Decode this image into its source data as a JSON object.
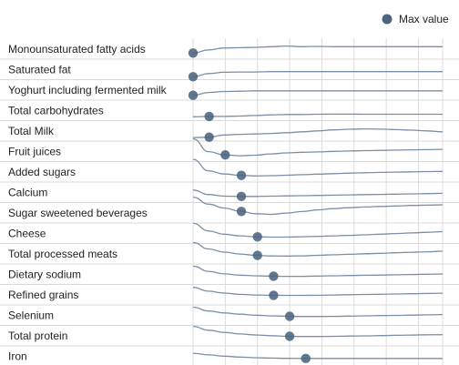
{
  "chart_data": {
    "type": "line",
    "legend": {
      "label": "Max value",
      "marker_color": "#4a6480",
      "placement": "top-right"
    },
    "grid": true,
    "colors": {
      "curve": "#7b8fa6",
      "grid": "#dcdcdc",
      "row_rule": "#d9d9d9",
      "axis": "#cfcfcf"
    },
    "series": [
      {
        "name": "Monounsaturated fatty acids",
        "max_x": 0.0,
        "curve": [
          0.3,
          0.55,
          0.7,
          0.72,
          0.75,
          0.8,
          0.85,
          0.8,
          0.82,
          0.8,
          0.8,
          0.8,
          0.8,
          0.8,
          0.8,
          0.8,
          0.8
        ]
      },
      {
        "name": "Saturated fat",
        "max_x": 0.0,
        "curve": [
          0.05,
          0.3,
          0.4,
          0.42,
          0.42,
          0.45,
          0.45,
          0.45,
          0.45,
          0.45,
          0.45,
          0.45,
          0.45,
          0.45,
          0.45,
          0.45,
          0.45
        ]
      },
      {
        "name": "Yoghurt including fermented milk",
        "max_x": 0.0,
        "curve": [
          0.2,
          0.42,
          0.5,
          0.52,
          0.55,
          0.55,
          0.55,
          0.55,
          0.55,
          0.55,
          0.55,
          0.55,
          0.55,
          0.55,
          0.55,
          0.55,
          0.55
        ]
      },
      {
        "name": "Total carbohydrates",
        "max_x": 1.0,
        "curve": [
          0.12,
          0.15,
          0.15,
          0.18,
          0.22,
          0.27,
          0.3,
          0.3,
          0.32,
          0.33,
          0.33,
          0.32,
          0.32,
          0.32,
          0.32,
          0.32,
          0.32
        ]
      },
      {
        "name": "Total Milk",
        "max_x": 1.0,
        "curve": [
          0.1,
          0.12,
          0.3,
          0.35,
          0.38,
          0.42,
          0.48,
          0.55,
          0.62,
          0.7,
          0.75,
          0.78,
          0.76,
          0.72,
          0.68,
          0.62,
          0.55
        ]
      },
      {
        "name": "Fruit juices",
        "max_x": 2.0,
        "curve": [
          1.6,
          0.6,
          0.35,
          0.28,
          0.32,
          0.42,
          0.5,
          0.55,
          0.58,
          0.62,
          0.65,
          0.68,
          0.7,
          0.72,
          0.74,
          0.76,
          0.78
        ]
      },
      {
        "name": "Added sugars",
        "max_x": 3.0,
        "curve": [
          1.6,
          0.7,
          0.45,
          0.35,
          0.3,
          0.32,
          0.36,
          0.4,
          0.44,
          0.48,
          0.52,
          0.55,
          0.58,
          0.6,
          0.62,
          0.64,
          0.66
        ]
      },
      {
        "name": "Calcium",
        "max_x": 3.0,
        "curve": [
          0.8,
          0.45,
          0.32,
          0.3,
          0.3,
          0.32,
          0.34,
          0.36,
          0.38,
          0.4,
          0.42,
          0.44,
          0.46,
          0.48,
          0.5,
          0.52,
          0.54
        ]
      },
      {
        "name": "Sugar sweetened beverages",
        "max_x": 3.0,
        "curve": [
          1.85,
          1.3,
          1.0,
          0.75,
          0.55,
          0.5,
          0.6,
          0.72,
          0.85,
          0.95,
          1.02,
          1.08,
          1.12,
          1.16,
          1.2,
          1.22,
          1.25
        ]
      },
      {
        "name": "Cheese",
        "max_x": 4.0,
        "curve": [
          1.4,
          0.8,
          0.55,
          0.42,
          0.35,
          0.32,
          0.32,
          0.35,
          0.38,
          0.42,
          0.46,
          0.5,
          0.55,
          0.6,
          0.65,
          0.7,
          0.75
        ]
      },
      {
        "name": "Total processed meats",
        "max_x": 4.0,
        "curve": [
          1.5,
          1.0,
          0.75,
          0.6,
          0.5,
          0.45,
          0.44,
          0.46,
          0.5,
          0.54,
          0.58,
          0.62,
          0.66,
          0.7,
          0.74,
          0.78,
          0.82
        ]
      },
      {
        "name": "Dietary sodium",
        "max_x": 5.0,
        "curve": [
          1.25,
          0.85,
          0.65,
          0.55,
          0.5,
          0.47,
          0.46,
          0.46,
          0.48,
          0.5,
          0.52,
          0.54,
          0.56,
          0.58,
          0.6,
          0.62,
          0.64
        ]
      },
      {
        "name": "Refined grains",
        "max_x": 5.0,
        "curve": [
          1.2,
          0.9,
          0.75,
          0.65,
          0.6,
          0.58,
          0.57,
          0.57,
          0.58,
          0.6,
          0.62,
          0.64,
          0.66,
          0.68,
          0.7,
          0.72,
          0.74
        ]
      },
      {
        "name": "Selenium",
        "max_x": 6.0,
        "curve": [
          1.25,
          0.95,
          0.8,
          0.7,
          0.62,
          0.57,
          0.54,
          0.52,
          0.52,
          0.53,
          0.55,
          0.57,
          0.59,
          0.61,
          0.63,
          0.65,
          0.67
        ]
      },
      {
        "name": "Total protein",
        "max_x": 6.0,
        "curve": [
          1.35,
          1.05,
          0.88,
          0.76,
          0.68,
          0.62,
          0.58,
          0.56,
          0.56,
          0.57,
          0.59,
          0.61,
          0.63,
          0.65,
          0.67,
          0.69,
          0.7
        ]
      },
      {
        "name": "Iron",
        "max_x": 7.0,
        "curve": [
          0.85,
          0.72,
          0.62,
          0.55,
          0.5,
          0.47,
          0.45,
          0.44,
          0.44,
          0.44,
          0.44,
          0.44,
          0.44,
          0.44,
          0.44,
          0.44,
          0.44
        ]
      }
    ],
    "x_range": [
      0,
      15.5
    ],
    "x_gridlines": [
      0,
      2,
      4,
      6,
      8,
      10,
      12,
      14,
      15.5
    ]
  }
}
